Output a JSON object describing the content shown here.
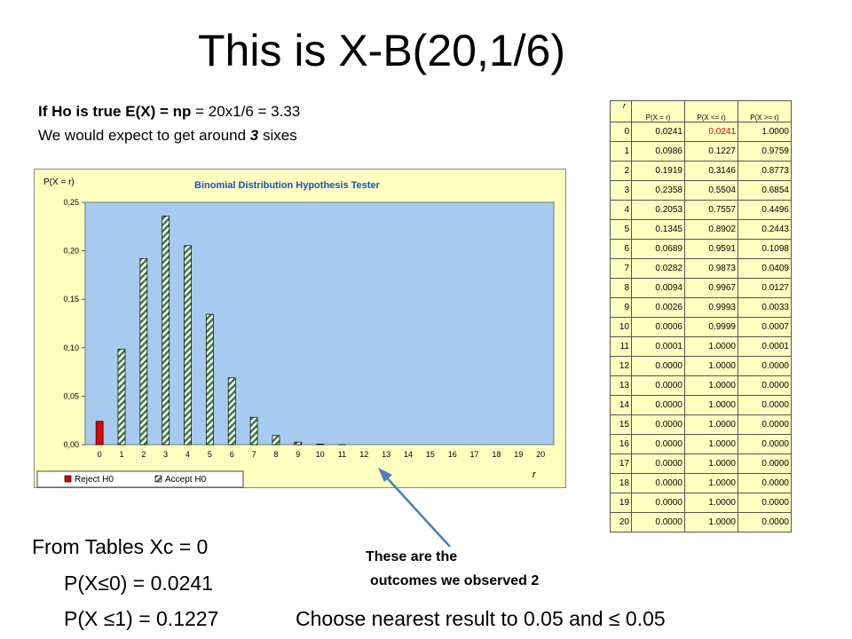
{
  "slide": {
    "title": "This is X-B(20,1/6)",
    "hypothesis_line1_bold": "If Ho is true E(X) = np",
    "hypothesis_line1_rest": "  = 20x1/6 = 3.33",
    "hypothesis_line2_pre": "We would expect to get around ",
    "hypothesis_line2_num": "3",
    "hypothesis_line2_post": " sixes",
    "tables_line": "From Tables Xc = 0",
    "p_le_0": "P(X≤0) = 0.0241",
    "p_le_1": "P(X ≤1) = 0.1227",
    "choose_line": "Choose nearest result to 0.05 and ≤ 0.05",
    "observed_line1": "These are the",
    "observed_line2": "outcomes we  observed 2"
  },
  "table": {
    "headers": [
      "r",
      "P(X = r)",
      "P(X <= r)",
      "P(X >= r)"
    ],
    "rows": [
      [
        "0",
        "0.0241",
        "0.0241",
        "1.0000"
      ],
      [
        "1",
        "0.0986",
        "0.1227",
        "0.9759"
      ],
      [
        "2",
        "0.1919",
        "0.3146",
        "0.8773"
      ],
      [
        "3",
        "0.2358",
        "0.5504",
        "0.6854"
      ],
      [
        "4",
        "0.2053",
        "0.7557",
        "0.4496"
      ],
      [
        "5",
        "0.1345",
        "0.8902",
        "0.2443"
      ],
      [
        "6",
        "0.0689",
        "0.9591",
        "0.1098"
      ],
      [
        "7",
        "0.0282",
        "0.9873",
        "0.0409"
      ],
      [
        "8",
        "0.0094",
        "0.9967",
        "0.0127"
      ],
      [
        "9",
        "0.0026",
        "0.9993",
        "0.0033"
      ],
      [
        "10",
        "0.0006",
        "0.9999",
        "0.0007"
      ],
      [
        "11",
        "0.0001",
        "1.0000",
        "0.0001"
      ],
      [
        "12",
        "0.0000",
        "1.0000",
        "0.0000"
      ],
      [
        "13",
        "0.0000",
        "1.0000",
        "0.0000"
      ],
      [
        "14",
        "0.0000",
        "1.0000",
        "0.0000"
      ],
      [
        "15",
        "0.0000",
        "1.0000",
        "0.0000"
      ],
      [
        "16",
        "0.0000",
        "1.0000",
        "0.0000"
      ],
      [
        "17",
        "0.0000",
        "1.0000",
        "0.0000"
      ],
      [
        "18",
        "0.0000",
        "1.0000",
        "0.0000"
      ],
      [
        "19",
        "0.0000",
        "1.0000",
        "0.0000"
      ],
      [
        "20",
        "0.0000",
        "1.0000",
        "0.0000"
      ]
    ],
    "highlight_color": "#e00000"
  },
  "chart_data": {
    "type": "bar",
    "title": "Binomial Distribution Hypothesis Tester",
    "ylabel": "P(X = r)",
    "xlabel": "r",
    "categories": [
      "0",
      "1",
      "2",
      "3",
      "4",
      "5",
      "6",
      "7",
      "8",
      "9",
      "10",
      "11",
      "12",
      "13",
      "14",
      "15",
      "16",
      "17",
      "18",
      "19",
      "20"
    ],
    "values": [
      0.0241,
      0.0986,
      0.1919,
      0.2358,
      0.2053,
      0.1345,
      0.0689,
      0.0282,
      0.0094,
      0.0026,
      0.0006,
      0.0001,
      0,
      0,
      0,
      0,
      0,
      0,
      0,
      0,
      0
    ],
    "reject": [
      true,
      false,
      false,
      false,
      false,
      false,
      false,
      false,
      false,
      false,
      false,
      false,
      false,
      false,
      false,
      false,
      false,
      false,
      false,
      false,
      false
    ],
    "ylim": [
      0,
      0.25
    ],
    "yticks": [
      "0,00",
      "0,05",
      "0,10",
      "0,15",
      "0,20",
      "0,25"
    ],
    "legend": [
      "Reject H0",
      "Accept H0"
    ],
    "legend_position": "bottom-left",
    "grid": false,
    "colors": {
      "plot_bg": "#a6caf0",
      "outer_bg": "#ffffc0",
      "reject": "#e00000",
      "accept_stripe": "#3c7d3c",
      "accept_bg": "#ffffff",
      "title": "#1a4fb8"
    }
  }
}
